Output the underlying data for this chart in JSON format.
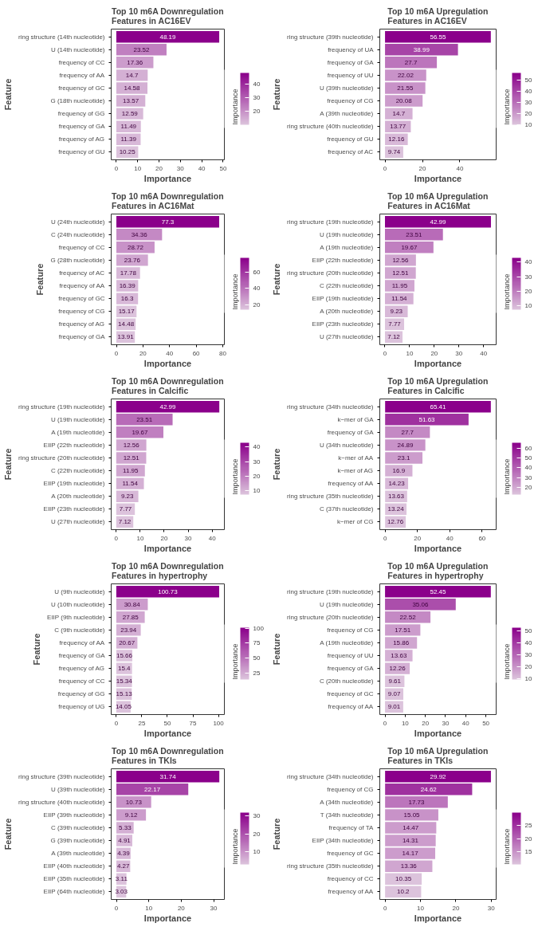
{
  "chart_data": [
    {
      "type": "bar",
      "orientation": "horizontal",
      "title": "Top 10 m6A Downregulation\nFeatures in AC16EV",
      "xlabel": "Importance",
      "ylabel": "Feature",
      "clabel": "Importance",
      "data_labels": true,
      "grid": false,
      "categories": [
        "ring structure (14th nucleotide)",
        "U (14th nucleotide)",
        "frequency of CC",
        "frequency of AA",
        "frequency of GC",
        "G (18th nucleotide)",
        "frequency of GG",
        "frequency of GA",
        "frequency of AG",
        "frequency of GU"
      ],
      "values": [
        48.19,
        23.52,
        17.36,
        14.7,
        14.58,
        13.57,
        12.59,
        11.49,
        11.39,
        10.25
      ],
      "colors": [
        "#8b008b",
        "#c07fc0",
        "#cc9ccc",
        "#d4b0d4",
        "#d4b0d4",
        "#d4b0d4",
        "#d8b9d8",
        "#d8b9d8",
        "#d8b9d8",
        "#dcc3dc"
      ],
      "xlim": [
        -2.4,
        50.6
      ],
      "xticks": [
        0,
        10,
        20,
        30,
        40,
        50
      ],
      "clim": [
        10.25,
        48.19
      ],
      "cticks": [
        20,
        30,
        40
      ]
    },
    {
      "type": "bar",
      "orientation": "horizontal",
      "title": "Top 10 m6A Upregulation\nFeatures in AC16EV",
      "xlabel": "Importance",
      "ylabel": "Feature",
      "clabel": "Importance",
      "data_labels": true,
      "grid": false,
      "categories": [
        "ring structure (39th nucleotide)",
        "frequency of UA",
        "frequency of GA",
        "frequency of UU",
        "U (39th nucleotide)",
        "frequency of CG",
        "A (39th nucleotide)",
        "ring structure (40th nucleotide)",
        "frequency of GU",
        "frequency of AC"
      ],
      "values": [
        56.55,
        38.99,
        27.7,
        22.02,
        21.55,
        20.08,
        14.7,
        13.77,
        12.16,
        9.74
      ],
      "colors": [
        "#8b008b",
        "#a744a7",
        "#bc75bc",
        "#c892c8",
        "#c892c8",
        "#cc9ccc",
        "#d4b0d4",
        "#d4b0d4",
        "#d8b9d8",
        "#dcc3dc"
      ],
      "xlim": [
        -2.8,
        59.4
      ],
      "xticks": [
        0,
        20,
        40
      ],
      "clim": [
        9.74,
        56.55
      ],
      "cticks": [
        10,
        20,
        30,
        40,
        50
      ]
    },
    {
      "type": "bar",
      "orientation": "horizontal",
      "title": "Top 10 m6A Downregulation\nFeatures in AC16Mat",
      "xlabel": "Importance",
      "ylabel": "Feature",
      "clabel": "Importance",
      "data_labels": true,
      "grid": false,
      "categories": [
        "U (24th nucleotide)",
        "C (24th nucleotide)",
        "frequency of CC",
        "G (28th nucleotide)",
        "frequency of AC",
        "frequency of AA",
        "frequency of GC",
        "frequency of CG",
        "frequency of AG",
        "frequency of GA"
      ],
      "values": [
        77.3,
        34.36,
        28.72,
        23.76,
        17.78,
        16.39,
        16.3,
        15.17,
        14.48,
        13.91
      ],
      "colors": [
        "#8b008b",
        "#c489c4",
        "#c892c8",
        "#d0a6d0",
        "#d8b9d8",
        "#d8b9d8",
        "#d8b9d8",
        "#dcc3dc",
        "#dcc3dc",
        "#dcc3dc"
      ],
      "xlim": [
        -3.9,
        81.2
      ],
      "xticks": [
        0,
        20,
        40,
        60,
        80
      ],
      "clim": [
        13.91,
        77.3
      ],
      "cticks": [
        20,
        40,
        60
      ]
    },
    {
      "type": "bar",
      "orientation": "horizontal",
      "title": "Top 10 m6A Upregulation\nFeatures in AC16Mat",
      "xlabel": "Importance",
      "ylabel": "Feature",
      "clabel": "Importance",
      "data_labels": true,
      "grid": false,
      "categories": [
        "ring structure (19th nucleotide)",
        "U (19th nucleotide)",
        "A (19th nucleotide)",
        "EIIP (22th nucleotide)",
        "ring structure (20th nucleotide)",
        "C (22th nucleotide)",
        "EIIP (19th nucleotide)",
        "A (20th nucleotide)",
        "EIIP (23th nucleotide)",
        "U (27th nucleotide)"
      ],
      "values": [
        42.99,
        23.51,
        19.67,
        12.56,
        12.51,
        11.95,
        11.54,
        9.23,
        7.77,
        7.12
      ],
      "colors": [
        "#8b008b",
        "#b86bb8",
        "#c07fc0",
        "#d0a6d0",
        "#d0a6d0",
        "#d0a6d0",
        "#d4b0d4",
        "#d8b9d8",
        "#dcc3dc",
        "#dcc3dc"
      ],
      "xlim": [
        -2.1,
        45.1
      ],
      "xticks": [
        0,
        10,
        20,
        30,
        40
      ],
      "clim": [
        7.12,
        42.99
      ],
      "cticks": [
        10,
        20,
        30,
        40
      ]
    },
    {
      "type": "bar",
      "orientation": "horizontal",
      "title": "Top 10 m6A Downregulation\nFeatures in Calcific",
      "xlabel": "Importance",
      "ylabel": "Feature",
      "clabel": "Importance",
      "data_labels": true,
      "grid": false,
      "categories": [
        "ring structure (19th nucleotide)",
        "U (19th nucleotide)",
        "A (19th nucleotide)",
        "EIIP (22th nucleotide)",
        "ring structure (20th nucleotide)",
        "C (22th nucleotide)",
        "EIIP (19th nucleotide)",
        "A (20th nucleotide)",
        "EIIP (23th nucleotide)",
        "U (27th nucleotide)"
      ],
      "values": [
        42.99,
        23.51,
        19.67,
        12.56,
        12.51,
        11.95,
        11.54,
        9.23,
        7.77,
        7.12
      ],
      "colors": [
        "#8b008b",
        "#b86bb8",
        "#c07fc0",
        "#d0a6d0",
        "#d0a6d0",
        "#d0a6d0",
        "#d4b0d4",
        "#d8b9d8",
        "#dcc3dc",
        "#dcc3dc"
      ],
      "xlim": [
        -2.1,
        45.1
      ],
      "xticks": [
        0,
        10,
        20,
        30,
        40
      ],
      "clim": [
        7.12,
        42.99
      ],
      "cticks": [
        10,
        20,
        30,
        40
      ]
    },
    {
      "type": "bar",
      "orientation": "horizontal",
      "title": "Top 10 m6A Upregulation\nFeatures in Calcific",
      "xlabel": "Importance",
      "ylabel": "Feature",
      "clabel": "Importance",
      "data_labels": true,
      "grid": false,
      "categories": [
        "ring structure (34th nucleotide)",
        "k−mer of GA",
        "frequency of GA",
        "U (34th nucleotide)",
        "k−mer of AA",
        "k−mer of AG",
        "frequency of AA",
        "ring structure (35th nucleotide)",
        "C (37th nucleotide)",
        "k−mer of CG"
      ],
      "values": [
        65.41,
        51.63,
        27.7,
        24.89,
        23.1,
        16.9,
        14.23,
        13.63,
        13.24,
        12.76
      ],
      "colors": [
        "#8b008b",
        "#9f319f",
        "#c489c4",
        "#c892c8",
        "#cc9ccc",
        "#d4b0d4",
        "#d8b9d8",
        "#dcc3dc",
        "#dcc3dc",
        "#dcc3dc"
      ],
      "xlim": [
        -3.3,
        68.7
      ],
      "xticks": [
        0,
        20,
        40,
        60
      ],
      "clim": [
        12.76,
        65.41
      ],
      "cticks": [
        20,
        30,
        40,
        50,
        60
      ]
    },
    {
      "type": "bar",
      "orientation": "horizontal",
      "title": "Top 10 m6A Downregulation\nFeatures in hypertrophy",
      "xlabel": "Importance",
      "ylabel": "Feature",
      "clabel": "Importance",
      "data_labels": true,
      "grid": false,
      "categories": [
        "U (9th nucleotide)",
        "U (10th nucleotide)",
        "EIIP (9th nucleotide)",
        "C (9th nucleotide)",
        "frequency of AA",
        "frequency of GA",
        "frequency of AG",
        "frequency of CC",
        "frequency of GG",
        "frequency of UG"
      ],
      "values": [
        100.73,
        30.84,
        27.85,
        23.94,
        20.67,
        15.66,
        15.4,
        15.34,
        15.13,
        14.05
      ],
      "colors": [
        "#8b008b",
        "#cc9ccc",
        "#d0a6d0",
        "#d4b0d4",
        "#d4b0d4",
        "#dcc3dc",
        "#dcc3dc",
        "#dcc3dc",
        "#dcc3dc",
        "#dcc3dc"
      ],
      "xlim": [
        -5,
        105.8
      ],
      "xticks": [
        0,
        25,
        50,
        75,
        100
      ],
      "clim": [
        14.05,
        100.73
      ],
      "cticks": [
        25,
        50,
        75,
        100
      ]
    },
    {
      "type": "bar",
      "orientation": "horizontal",
      "title": "Top 10 m6A Upregulation\nFeatures in hypertrophy",
      "xlabel": "Importance",
      "ylabel": "Feature",
      "clabel": "Importance",
      "data_labels": true,
      "grid": false,
      "categories": [
        "ring structure (19th nucleotide)",
        "U (19th nucleotide)",
        "ring structure (20th nucleotide)",
        "frequency of CG",
        "A (19th nucleotide)",
        "frequency of UU",
        "frequency of GA",
        "C (20th nucleotide)",
        "frequency of GC",
        "frequency of AA"
      ],
      "values": [
        52.45,
        35.06,
        22.52,
        17.51,
        15.86,
        13.63,
        12.26,
        9.61,
        9.07,
        9.01
      ],
      "colors": [
        "#8b008b",
        "#ab4eab",
        "#c489c4",
        "#cc9ccc",
        "#d0a6d0",
        "#d4b0d4",
        "#d4b0d4",
        "#dcc3dc",
        "#dcc3dc",
        "#dcc3dc"
      ],
      "xlim": [
        -2.6,
        55.1
      ],
      "xticks": [
        0,
        10,
        20,
        30,
        40,
        50
      ],
      "clim": [
        9.01,
        52.45
      ],
      "cticks": [
        10,
        20,
        30,
        40,
        50
      ]
    },
    {
      "type": "bar",
      "orientation": "horizontal",
      "title": "Top 10 m6A Downregulation\nFeatures in TKIs",
      "xlabel": "Importance",
      "ylabel": "Feature",
      "clabel": "Importance",
      "data_labels": true,
      "grid": false,
      "categories": [
        "ring structure (39th nucleotide)",
        "U (39th nucleotide)",
        "ring structure (40th nucleotide)",
        "EIIP (39th nucleotide)",
        "C (39th nucleotide)",
        "G (39th nucleotide)",
        "A (39th nucleotide)",
        "EIIP (40th nucleotide)",
        "EIIP (35th nucleotide)",
        "EIIP (64th nucleotide)"
      ],
      "values": [
        31.74,
        22.17,
        10.73,
        9.12,
        5.33,
        4.91,
        4.39,
        4.27,
        3.11,
        3.03
      ],
      "colors": [
        "#8b008b",
        "#a744a7",
        "#c892c8",
        "#cc9ccc",
        "#d4b0d4",
        "#d8b9d8",
        "#d8b9d8",
        "#d8b9d8",
        "#dcc3dc",
        "#dcc3dc"
      ],
      "xlim": [
        -1.6,
        33.3
      ],
      "xticks": [
        0,
        10,
        20,
        30
      ],
      "clim": [
        3.03,
        31.74
      ],
      "cticks": [
        10,
        20,
        30
      ]
    },
    {
      "type": "bar",
      "orientation": "horizontal",
      "title": "Top 10 m6A Upregulation\nFeatures in TKIs",
      "xlabel": "Importance",
      "ylabel": "Feature",
      "clabel": "Importance",
      "data_labels": true,
      "grid": false,
      "categories": [
        "ring structure (34th nucleotide)",
        "frequency of CG",
        "A (34th nucleotide)",
        "T (34th nucleotide)",
        "frequency of TA",
        "EIIP (34th nucleotide)",
        "frequency of GC",
        "ring structure (35th nucleotide)",
        "frequency of CC",
        "frequency of AA"
      ],
      "values": [
        29.92,
        24.62,
        17.73,
        15.05,
        14.47,
        14.31,
        14.17,
        13.36,
        10.35,
        10.2
      ],
      "colors": [
        "#8b008b",
        "#9f319f",
        "#bc75bc",
        "#c892c8",
        "#cc9ccc",
        "#cc9ccc",
        "#cc9ccc",
        "#d0a6d0",
        "#dcc3dc",
        "#dcc3dc"
      ],
      "xlim": [
        -1.5,
        31.4
      ],
      "xticks": [
        0,
        10,
        20,
        30
      ],
      "clim": [
        10.2,
        29.92
      ],
      "cticks": [
        15,
        20,
        25
      ]
    }
  ]
}
